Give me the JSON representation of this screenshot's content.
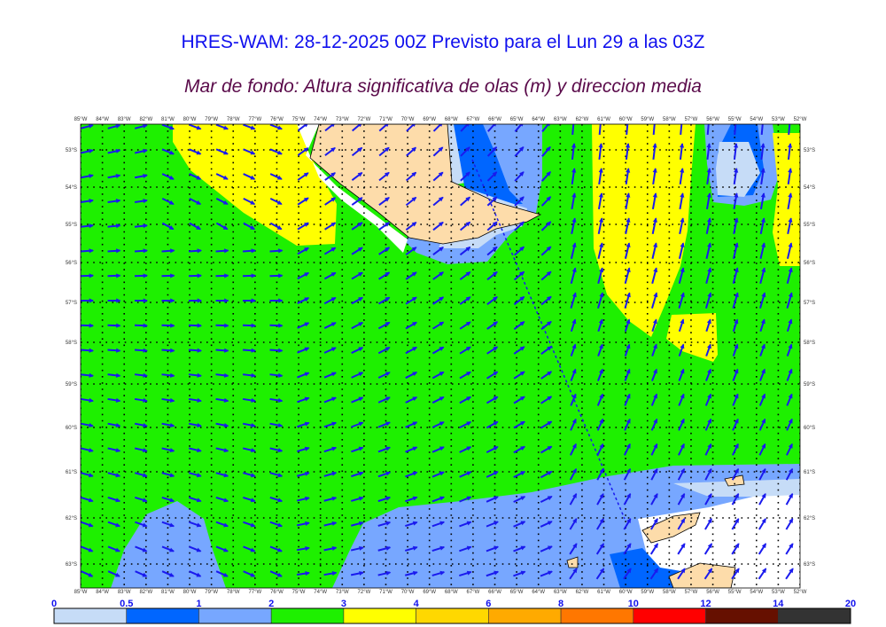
{
  "title": "HRES-WAM: 28-12-2025 00Z Previsto para el Lun 29 a las 03Z",
  "subtitle": "Mar de fondo: Altura significativa de olas (m) y direccion media",
  "map": {
    "lon_labels": [
      "85°W",
      "84°W",
      "83°W",
      "82°W",
      "81°W",
      "80°W",
      "79°W",
      "78°W",
      "77°W",
      "76°W",
      "75°W",
      "74°W",
      "73°W",
      "72°W",
      "71°W",
      "70°W",
      "69°W",
      "68°W",
      "67°W",
      "66°W",
      "65°W",
      "64°W",
      "63°W",
      "62°W",
      "61°W",
      "60°W",
      "59°W",
      "58°W",
      "57°W",
      "56°W",
      "55°W",
      "54°W",
      "53°W",
      "52°W"
    ],
    "lat_labels": [
      "53°S",
      "54°S",
      "55°S",
      "56°S",
      "57°S",
      "58°S",
      "59°S",
      "60°S",
      "61°S",
      "62°S",
      "63°S"
    ],
    "lon_range": [
      -85,
      -52
    ],
    "lat_range": [
      -52.4,
      -63.5
    ],
    "arrow_color": "#1a1aee",
    "land_color": "#fddcaa"
  },
  "colorbar": {
    "labels": [
      "0",
      "0.5",
      "1",
      "2",
      "3",
      "4",
      "6",
      "8",
      "10",
      "12",
      "14",
      "20"
    ],
    "colors": [
      "#c6dcf7",
      "#0066ff",
      "#77a7ff",
      "#1ef000",
      "#ffff00",
      "#ffd800",
      "#ffaa00",
      "#ff7700",
      "#ff0000",
      "#661000",
      "#333333"
    ]
  }
}
